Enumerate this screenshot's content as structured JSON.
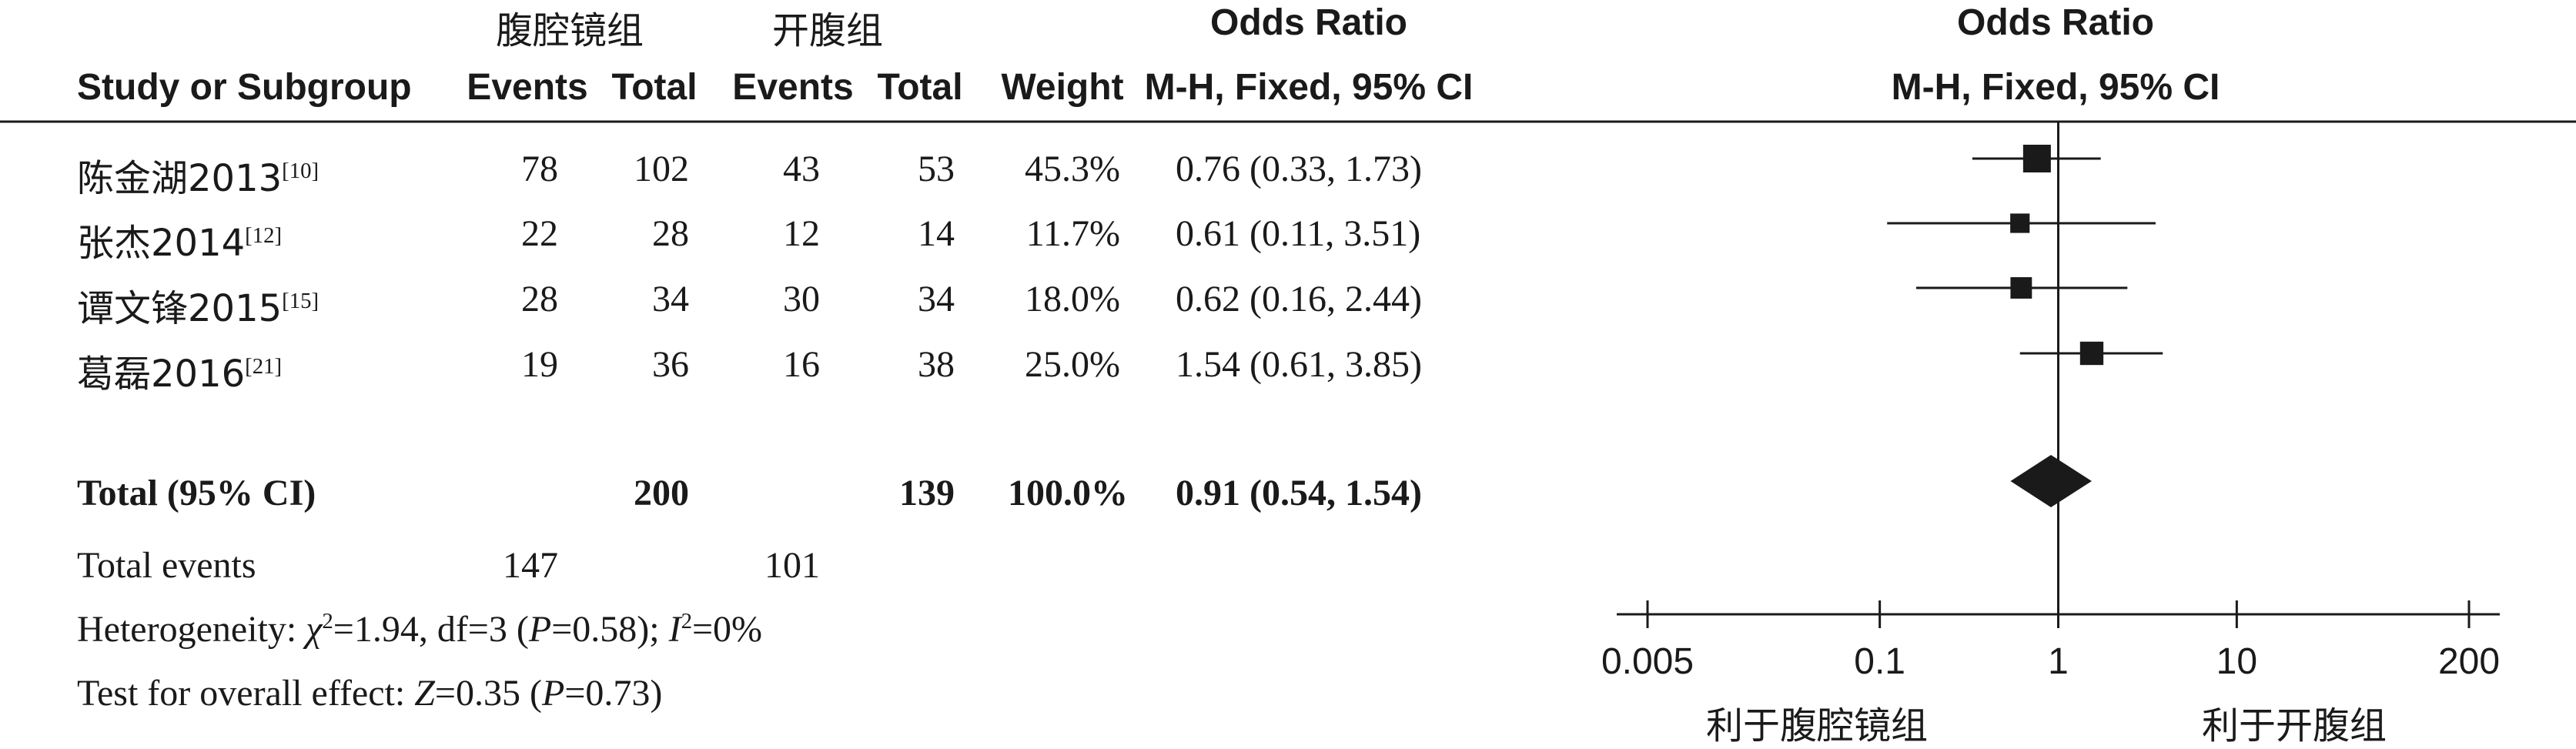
{
  "group_headers": {
    "experimental": "腹腔镜组",
    "control": "开腹组"
  },
  "effect_header": {
    "title": "Odds Ratio",
    "method": "M-H, Fixed, 95% CI"
  },
  "plot_header": {
    "title": "Odds Ratio",
    "method": "M-H, Fixed, 95% CI"
  },
  "columns": {
    "study": "Study or Subgroup",
    "exp_events": "Events",
    "exp_total": "Total",
    "ctrl_events": "Events",
    "ctrl_total": "Total",
    "weight": "Weight",
    "ci": "M-H, Fixed, 95% CI"
  },
  "studies": [
    {
      "name": "陈金湖2013",
      "ref": "[10]",
      "exp_events": "78",
      "exp_total": "102",
      "ctrl_events": "43",
      "ctrl_total": "53",
      "weight": "45.3%",
      "ci_text": "0.76 (0.33, 1.73)"
    },
    {
      "name": "张杰2014",
      "ref": "[12]",
      "exp_events": "22",
      "exp_total": "28",
      "ctrl_events": "12",
      "ctrl_total": "14",
      "weight": "11.7%",
      "ci_text": "0.61 (0.11, 3.51)"
    },
    {
      "name": "谭文锋2015",
      "ref": "[15]",
      "exp_events": "28",
      "exp_total": "34",
      "ctrl_events": "30",
      "ctrl_total": "34",
      "weight": "18.0%",
      "ci_text": "0.62 (0.16, 2.44)"
    },
    {
      "name": "葛磊2016",
      "ref": "[21]",
      "exp_events": "19",
      "exp_total": "36",
      "ctrl_events": "16",
      "ctrl_total": "38",
      "weight": "25.0%",
      "ci_text": "1.54 (0.61, 3.85)"
    }
  ],
  "total": {
    "label": "Total (95% CI)",
    "exp_total": "200",
    "ctrl_total": "139",
    "weight": "100.0%",
    "ci_text": "0.91 (0.54, 1.54)"
  },
  "total_events": {
    "label": "Total events",
    "exp": "147",
    "ctrl": "101"
  },
  "heterogeneity": {
    "prefix": "Heterogeneity: ",
    "chi_sym": "χ",
    "chi_sup": "2",
    "chi_val": "=1.94, df=3 (",
    "p_sym": "P",
    "p_val": "=0.58); ",
    "i_sym": "I",
    "i_sup": "2",
    "i_val": "=0%"
  },
  "overall_effect": {
    "prefix": "Test for overall effect: ",
    "z_sym": "Z",
    "z_val": "=0.35 (",
    "p_sym": "P",
    "p_val": "=0.73)"
  },
  "axis_left_label": "利于腹腔镜组",
  "axis_right_label": "利于开腹组",
  "chart_data": {
    "type": "forest",
    "xscale": "log",
    "xlim": [
      0.005,
      200
    ],
    "xticks": [
      0.005,
      0.1,
      1,
      10,
      200
    ],
    "tick_labels": [
      "0.005",
      "0.1",
      "1",
      "10",
      "200"
    ],
    "reference_line": 1,
    "studies": [
      {
        "name": "陈金湖2013",
        "or": 0.76,
        "lower": 0.33,
        "upper": 1.73,
        "weight": 45.3
      },
      {
        "name": "张杰2014",
        "or": 0.61,
        "lower": 0.11,
        "upper": 3.51,
        "weight": 11.7
      },
      {
        "name": "谭文锋2015",
        "or": 0.62,
        "lower": 0.16,
        "upper": 2.44,
        "weight": 18.0
      },
      {
        "name": "葛磊2016",
        "or": 1.54,
        "lower": 0.61,
        "upper": 3.85,
        "weight": 25.0
      }
    ],
    "pooled": {
      "or": 0.91,
      "lower": 0.54,
      "upper": 1.54
    }
  }
}
